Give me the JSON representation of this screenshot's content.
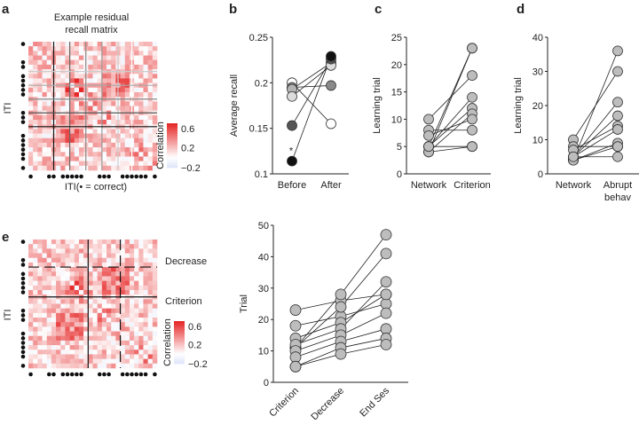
{
  "panel_labels": {
    "a": "a",
    "b": "b",
    "c": "c",
    "d": "d",
    "e": "e"
  },
  "chart_data": [
    {
      "id": "a",
      "type": "heatmap",
      "title_line1": "Example residual",
      "title_line2": "recall matrix",
      "ylabel": "ITI",
      "xlabel": "ITI(• = correct)",
      "size": 28,
      "correct_trials": [
        0,
        4,
        5,
        7,
        8,
        9,
        10,
        11,
        15,
        16,
        17,
        20,
        21,
        22,
        23,
        24,
        25,
        27
      ],
      "colorbar": {
        "label": "Correlation",
        "ticks": [
          "0.6",
          "0.2",
          "−0.2"
        ],
        "range": [
          -0.2,
          0.7
        ]
      }
    },
    {
      "id": "b",
      "type": "line",
      "ylabel": "Average recall",
      "categories": [
        "Before",
        "After"
      ],
      "ylim": [
        0.1,
        0.25
      ],
      "yticks": [
        "0.1",
        "0.15",
        "0.2",
        "0.25"
      ],
      "annotation": "*",
      "series": [
        {
          "color": "#ffffff",
          "values": [
            0.2,
            0.155
          ]
        },
        {
          "color": "#8a8a8a",
          "values": [
            0.195,
            0.197
          ]
        },
        {
          "color": "#b4b4b4",
          "values": [
            0.193,
            0.222
          ]
        },
        {
          "color": "#dcdcdc",
          "values": [
            0.185,
            0.219
          ]
        },
        {
          "color": "#555555",
          "values": [
            0.153,
            0.226
          ]
        },
        {
          "color": "#111111",
          "values": [
            0.114,
            0.229
          ]
        }
      ]
    },
    {
      "id": "c",
      "type": "line",
      "ylabel": "Learning trial",
      "categories": [
        "Network",
        "Criterion"
      ],
      "ylim": [
        0,
        25
      ],
      "yticks": [
        "0",
        "5",
        "10",
        "15",
        "20",
        "25"
      ],
      "series": [
        [
          10,
          18
        ],
        [
          8,
          8
        ],
        [
          4,
          23
        ],
        [
          5,
          23
        ],
        [
          5,
          14
        ],
        [
          5,
          12
        ],
        [
          4,
          11
        ],
        [
          7,
          10
        ],
        [
          4,
          5
        ],
        [
          5,
          5
        ]
      ]
    },
    {
      "id": "d",
      "type": "line",
      "ylabel": "Learning trial",
      "categories": [
        "Network",
        "Abrupt behav"
      ],
      "ylim": [
        0,
        40
      ],
      "yticks": [
        "0",
        "10",
        "20",
        "30",
        "40"
      ],
      "series": [
        [
          10,
          30
        ],
        [
          8,
          8
        ],
        [
          4,
          36
        ],
        [
          5,
          21
        ],
        [
          5,
          17
        ],
        [
          7,
          14
        ],
        [
          5,
          13
        ],
        [
          4,
          9
        ],
        [
          4,
          8
        ],
        [
          5,
          5
        ]
      ]
    },
    {
      "id": "e-matrix",
      "type": "heatmap",
      "ylabel": "ITI",
      "size": 28,
      "correct_trials": [
        0,
        4,
        5,
        7,
        8,
        9,
        10,
        11,
        15,
        16,
        17,
        20,
        21,
        22,
        23,
        24,
        25,
        27
      ],
      "annotations": [
        "Decrease",
        "Criterion"
      ],
      "colorbar": {
        "label": "Correlation",
        "ticks": [
          "0.6",
          "0.2",
          "−0.2"
        ],
        "range": [
          -0.2,
          0.7
        ]
      }
    },
    {
      "id": "e",
      "type": "line",
      "ylabel": "Trial",
      "categories": [
        "Criterion",
        "Decrease",
        "End Ses"
      ],
      "ylim": [
        0,
        50
      ],
      "yticks": [
        "0",
        "10",
        "20",
        "30",
        "40",
        "50"
      ],
      "series": [
        [
          23,
          26,
          28
        ],
        [
          18,
          21,
          25
        ],
        [
          14,
          19,
          28
        ],
        [
          11,
          28,
          47
        ],
        [
          11,
          24,
          41
        ],
        [
          12,
          17,
          32
        ],
        [
          10,
          15,
          22
        ],
        [
          8,
          13,
          17
        ],
        [
          5,
          11,
          14
        ],
        [
          5,
          9,
          12
        ]
      ]
    }
  ]
}
